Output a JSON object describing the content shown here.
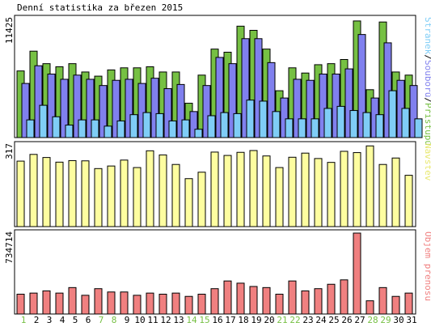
{
  "title": "Denní statistika za březen 2015",
  "colors": {
    "frame": "#000000",
    "grid": "#bfbfbf",
    "access": "#76c043",
    "files": "#8080ee",
    "pages": "#7fcdf6",
    "visits": "#fefea0",
    "volume": "#f08080",
    "weekend_label": "#76c043",
    "weekday_label": "#000000",
    "legend_pages": "#7fcdf6",
    "legend_files": "#8080ee",
    "legend_access": "#76c043",
    "legend_visits": "#e8e870",
    "legend_volume": "#f08080"
  },
  "chart_data": [
    {
      "type": "bar",
      "title": "Denní statistika za březen 2015",
      "ylabel": "11425",
      "ymax": 11425,
      "legend_vertical": [
        "Stránek",
        "/",
        "Souborů",
        "/",
        "Přístupů"
      ],
      "categories": [
        "1",
        "2",
        "3",
        "4",
        "5",
        "6",
        "7",
        "8",
        "9",
        "10",
        "11",
        "12",
        "13",
        "14",
        "15",
        "16",
        "17",
        "18",
        "19",
        "20",
        "21",
        "22",
        "23",
        "24",
        "25",
        "26",
        "27",
        "28",
        "29",
        "30",
        "31"
      ],
      "weekend_days": [
        "1",
        "7",
        "8",
        "14",
        "15",
        "21",
        "22",
        "28",
        "29"
      ],
      "series": [
        {
          "name": "Přístupů",
          "values": [
            6400,
            8300,
            7100,
            6800,
            7100,
            6300,
            5900,
            6500,
            6700,
            6700,
            6800,
            6300,
            6300,
            3300,
            6000,
            8500,
            8200,
            10700,
            10300,
            8500,
            4500,
            6700,
            6200,
            7000,
            7100,
            7500,
            11200,
            4600,
            11100,
            6300,
            6000
          ]
        },
        {
          "name": "Souborů",
          "values": [
            5200,
            6900,
            6100,
            5600,
            6000,
            5600,
            5000,
            5500,
            5600,
            5200,
            5700,
            4700,
            5100,
            2500,
            5000,
            7700,
            7100,
            9500,
            9500,
            7200,
            3800,
            5600,
            5500,
            6100,
            6100,
            6600,
            9900,
            3800,
            9100,
            5500,
            5000
          ]
        },
        {
          "name": "Stránek",
          "values": [
            1700,
            3100,
            2000,
            1200,
            1700,
            1700,
            1100,
            1600,
            2200,
            2400,
            2300,
            1600,
            1700,
            800,
            2100,
            2400,
            2300,
            3600,
            3500,
            2500,
            1800,
            1800,
            1800,
            2800,
            3000,
            2600,
            2400,
            2200,
            4500,
            2800,
            1800
          ]
        }
      ]
    },
    {
      "type": "bar",
      "ylabel": "317",
      "ymax": 317,
      "legend_vertical": [
        "Návštěv"
      ],
      "categories": [
        "1",
        "2",
        "3",
        "4",
        "5",
        "6",
        "7",
        "8",
        "9",
        "10",
        "11",
        "12",
        "13",
        "14",
        "15",
        "16",
        "17",
        "18",
        "19",
        "20",
        "21",
        "22",
        "23",
        "24",
        "25",
        "26",
        "27",
        "28",
        "29",
        "30",
        "31"
      ],
      "series": [
        {
          "name": "Návštěv",
          "values": [
            254,
            280,
            268,
            250,
            256,
            255,
            225,
            235,
            258,
            229,
            294,
            278,
            241,
            186,
            211,
            289,
            276,
            288,
            295,
            274,
            229,
            269,
            285,
            264,
            249,
            292,
            287,
            313,
            241,
            266,
            199
          ]
        }
      ]
    },
    {
      "type": "bar",
      "ylabel": "734714",
      "ymax": 734714,
      "legend_vertical": [
        "Objem přenosu"
      ],
      "categories": [
        "1",
        "2",
        "3",
        "4",
        "5",
        "6",
        "7",
        "8",
        "9",
        "10",
        "11",
        "12",
        "13",
        "14",
        "15",
        "16",
        "17",
        "18",
        "19",
        "20",
        "21",
        "22",
        "23",
        "24",
        "25",
        "26",
        "27",
        "28",
        "29",
        "30",
        "31"
      ],
      "series": [
        {
          "name": "Objem přenosu",
          "values": [
            180000,
            190000,
            210000,
            190000,
            240000,
            170000,
            230000,
            200000,
            200000,
            170000,
            190000,
            180000,
            190000,
            160000,
            180000,
            230000,
            300000,
            280000,
            250000,
            240000,
            180000,
            300000,
            210000,
            230000,
            270000,
            310000,
            734714,
            120000,
            240000,
            160000,
            190000
          ]
        }
      ]
    }
  ]
}
